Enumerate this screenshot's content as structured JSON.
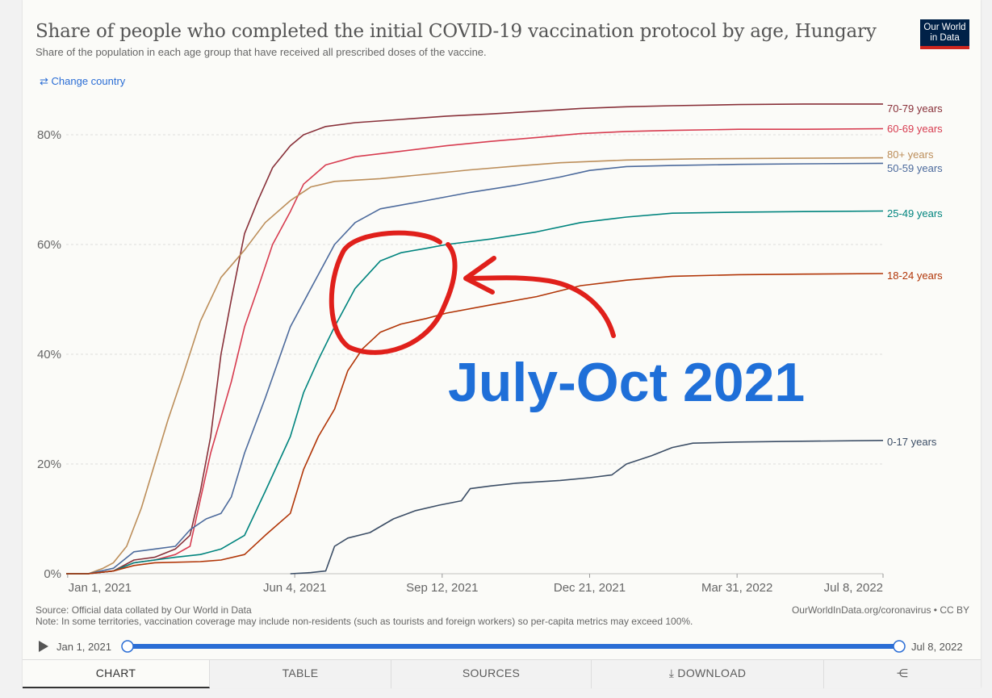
{
  "header": {
    "title": "Share of people who completed the initial COVID-19 vaccination protocol by age, Hungary",
    "subtitle": "Share of the population in each age group that have received all prescribed doses of the vaccine.",
    "logo_line1": "Our World",
    "logo_line2": "in Data",
    "change_country": "Change country"
  },
  "footer": {
    "source": "Source: Official data collated by Our World in Data",
    "note": "Note: In some territories, vaccination coverage may include non-residents (such as tourists and foreign workers) so per-capita metrics may exceed 100%.",
    "credit": "OurWorldInData.org/coronavirus • CC BY"
  },
  "timeline": {
    "start": "Jan 1, 2021",
    "end": "Jul 8, 2022"
  },
  "tabs": [
    "CHART",
    "TABLE",
    "SOURCES",
    "DOWNLOAD"
  ],
  "annotation": {
    "text": "July-Oct 2021",
    "color": "#1f6fd8",
    "circle_color": "#e0201b"
  },
  "chart_data": {
    "type": "line",
    "x_tick_labels": [
      "Jan 1, 2021",
      "Jun 4, 2021",
      "Sep 12, 2021",
      "Dec 21, 2021",
      "Mar 31, 2022",
      "Jul 8, 2022"
    ],
    "x_ticks": [
      "2021-01-01",
      "2021-06-04",
      "2021-09-12",
      "2021-12-21",
      "2022-03-31",
      "2022-07-08"
    ],
    "xlim": [
      "2020-12-31",
      "2022-07-08"
    ],
    "ylim": [
      0,
      80
    ],
    "y_ticks": [
      0,
      20,
      40,
      60,
      80
    ],
    "y_tick_labels": [
      "0%",
      "20%",
      "40%",
      "60%",
      "80%"
    ],
    "grid": "horizontal dashed",
    "labels_position": "right",
    "series": [
      {
        "name": "70-79 years",
        "color": "#883039",
        "points": [
          [
            "2020-12-31",
            0
          ],
          [
            "2021-01-15",
            0
          ],
          [
            "2021-02-01",
            0.5
          ],
          [
            "2021-02-15",
            2.5
          ],
          [
            "2021-03-01",
            3
          ],
          [
            "2021-03-15",
            4.5
          ],
          [
            "2021-03-25",
            7
          ],
          [
            "2021-04-01",
            15
          ],
          [
            "2021-04-08",
            25
          ],
          [
            "2021-04-15",
            40
          ],
          [
            "2021-04-22",
            50
          ],
          [
            "2021-05-01",
            62
          ],
          [
            "2021-05-10",
            68
          ],
          [
            "2021-05-20",
            74
          ],
          [
            "2021-06-01",
            78
          ],
          [
            "2021-06-10",
            80
          ],
          [
            "2021-06-25",
            81.5
          ],
          [
            "2021-07-15",
            82.2
          ],
          [
            "2021-08-15",
            82.8
          ],
          [
            "2021-09-15",
            83.4
          ],
          [
            "2021-10-15",
            83.8
          ],
          [
            "2021-11-15",
            84.3
          ],
          [
            "2021-12-15",
            84.8
          ],
          [
            "2022-01-15",
            85.1
          ],
          [
            "2022-02-15",
            85.3
          ],
          [
            "2022-04-01",
            85.5
          ],
          [
            "2022-05-15",
            85.6
          ],
          [
            "2022-07-08",
            85.6
          ]
        ]
      },
      {
        "name": "60-69 years",
        "color": "#d73c50",
        "points": [
          [
            "2020-12-31",
            0
          ],
          [
            "2021-01-15",
            0
          ],
          [
            "2021-02-01",
            0.5
          ],
          [
            "2021-02-15",
            2
          ],
          [
            "2021-03-01",
            2.5
          ],
          [
            "2021-03-15",
            3.5
          ],
          [
            "2021-03-25",
            5
          ],
          [
            "2021-04-08",
            22
          ],
          [
            "2021-04-22",
            35
          ],
          [
            "2021-05-01",
            45
          ],
          [
            "2021-05-10",
            52
          ],
          [
            "2021-05-20",
            60
          ],
          [
            "2021-06-01",
            66
          ],
          [
            "2021-06-10",
            71
          ],
          [
            "2021-06-25",
            74.5
          ],
          [
            "2021-07-15",
            76
          ],
          [
            "2021-08-15",
            77
          ],
          [
            "2021-09-15",
            78
          ],
          [
            "2021-10-15",
            78.8
          ],
          [
            "2021-11-15",
            79.5
          ],
          [
            "2021-12-15",
            80.2
          ],
          [
            "2022-01-15",
            80.6
          ],
          [
            "2022-02-15",
            80.8
          ],
          [
            "2022-04-01",
            81
          ],
          [
            "2022-05-15",
            81
          ],
          [
            "2022-07-08",
            81.1
          ]
        ]
      },
      {
        "name": "80+ years",
        "color": "#bc8e5a",
        "points": [
          [
            "2020-12-31",
            0
          ],
          [
            "2021-01-15",
            0
          ],
          [
            "2021-01-25",
            1
          ],
          [
            "2021-02-01",
            2
          ],
          [
            "2021-02-10",
            5
          ],
          [
            "2021-02-20",
            12
          ],
          [
            "2021-03-01",
            20
          ],
          [
            "2021-03-10",
            28
          ],
          [
            "2021-03-20",
            36
          ],
          [
            "2021-04-01",
            46
          ],
          [
            "2021-04-15",
            54
          ],
          [
            "2021-05-01",
            59
          ],
          [
            "2021-05-15",
            64
          ],
          [
            "2021-06-01",
            68
          ],
          [
            "2021-06-15",
            70.5
          ],
          [
            "2021-07-01",
            71.5
          ],
          [
            "2021-08-01",
            72
          ],
          [
            "2021-09-01",
            72.8
          ],
          [
            "2021-10-01",
            73.6
          ],
          [
            "2021-11-01",
            74.3
          ],
          [
            "2021-12-01",
            74.9
          ],
          [
            "2022-01-15",
            75.4
          ],
          [
            "2022-03-01",
            75.6
          ],
          [
            "2022-05-01",
            75.7
          ],
          [
            "2022-07-08",
            75.8
          ]
        ]
      },
      {
        "name": "50-59 years",
        "color": "#4c6a9c",
        "points": [
          [
            "2020-12-31",
            0
          ],
          [
            "2021-01-15",
            0
          ],
          [
            "2021-02-01",
            1
          ],
          [
            "2021-02-15",
            4
          ],
          [
            "2021-03-01",
            4.5
          ],
          [
            "2021-03-15",
            5
          ],
          [
            "2021-03-25",
            8
          ],
          [
            "2021-04-05",
            10
          ],
          [
            "2021-04-15",
            11
          ],
          [
            "2021-04-22",
            14
          ],
          [
            "2021-05-01",
            22
          ],
          [
            "2021-05-15",
            32
          ],
          [
            "2021-06-01",
            45
          ],
          [
            "2021-06-15",
            52
          ],
          [
            "2021-07-01",
            60
          ],
          [
            "2021-07-15",
            64
          ],
          [
            "2021-08-01",
            66.5
          ],
          [
            "2021-09-01",
            68
          ],
          [
            "2021-10-01",
            69.5
          ],
          [
            "2021-11-01",
            70.8
          ],
          [
            "2021-12-01",
            72.3
          ],
          [
            "2021-12-21",
            73.5
          ],
          [
            "2022-01-15",
            74.2
          ],
          [
            "2022-02-15",
            74.4
          ],
          [
            "2022-04-01",
            74.6
          ],
          [
            "2022-05-15",
            74.7
          ],
          [
            "2022-07-08",
            74.8
          ]
        ]
      },
      {
        "name": "25-49 years",
        "color": "#00847e",
        "points": [
          [
            "2020-12-31",
            0
          ],
          [
            "2021-01-15",
            0
          ],
          [
            "2021-02-01",
            0.5
          ],
          [
            "2021-02-15",
            2
          ],
          [
            "2021-03-01",
            2.5
          ],
          [
            "2021-03-15",
            3
          ],
          [
            "2021-04-01",
            3.5
          ],
          [
            "2021-04-15",
            4.5
          ],
          [
            "2021-05-01",
            7
          ],
          [
            "2021-05-15",
            15
          ],
          [
            "2021-06-01",
            25
          ],
          [
            "2021-06-10",
            33
          ],
          [
            "2021-06-20",
            39
          ],
          [
            "2021-07-01",
            45
          ],
          [
            "2021-07-15",
            52
          ],
          [
            "2021-08-01",
            57
          ],
          [
            "2021-08-15",
            58.5
          ],
          [
            "2021-09-01",
            59.3
          ],
          [
            "2021-09-15",
            60
          ],
          [
            "2021-10-15",
            61
          ],
          [
            "2021-11-15",
            62.3
          ],
          [
            "2021-12-15",
            64
          ],
          [
            "2022-01-15",
            65
          ],
          [
            "2022-02-15",
            65.7
          ],
          [
            "2022-04-01",
            65.9
          ],
          [
            "2022-05-15",
            66
          ],
          [
            "2022-07-08",
            66.1
          ]
        ]
      },
      {
        "name": "18-24 years",
        "color": "#b13507",
        "points": [
          [
            "2020-12-31",
            0
          ],
          [
            "2021-01-15",
            0
          ],
          [
            "2021-02-01",
            0.5
          ],
          [
            "2021-02-15",
            1.5
          ],
          [
            "2021-03-01",
            2
          ],
          [
            "2021-04-01",
            2.2
          ],
          [
            "2021-04-15",
            2.5
          ],
          [
            "2021-05-01",
            3.5
          ],
          [
            "2021-05-15",
            7
          ],
          [
            "2021-06-01",
            11
          ],
          [
            "2021-06-10",
            19
          ],
          [
            "2021-06-20",
            25
          ],
          [
            "2021-07-01",
            30
          ],
          [
            "2021-07-10",
            37
          ],
          [
            "2021-07-20",
            41
          ],
          [
            "2021-08-01",
            44
          ],
          [
            "2021-08-15",
            45.5
          ],
          [
            "2021-09-01",
            46.5
          ],
          [
            "2021-09-15",
            47.5
          ],
          [
            "2021-10-15",
            49
          ],
          [
            "2021-11-15",
            50.5
          ],
          [
            "2021-12-15",
            52.5
          ],
          [
            "2022-01-15",
            53.5
          ],
          [
            "2022-02-15",
            54.2
          ],
          [
            "2022-04-01",
            54.5
          ],
          [
            "2022-05-15",
            54.6
          ],
          [
            "2022-07-08",
            54.7
          ]
        ]
      },
      {
        "name": "0-17 years",
        "color": "#3c4e66",
        "points": [
          [
            "2021-06-01",
            0
          ],
          [
            "2021-06-15",
            0.2
          ],
          [
            "2021-06-25",
            0.5
          ],
          [
            "2021-07-01",
            5
          ],
          [
            "2021-07-10",
            6.5
          ],
          [
            "2021-07-25",
            7.5
          ],
          [
            "2021-08-10",
            10
          ],
          [
            "2021-08-25",
            11.5
          ],
          [
            "2021-09-10",
            12.5
          ],
          [
            "2021-09-25",
            13.3
          ],
          [
            "2021-10-01",
            15.5
          ],
          [
            "2021-10-15",
            16
          ],
          [
            "2021-11-01",
            16.5
          ],
          [
            "2021-12-01",
            17
          ],
          [
            "2021-12-21",
            17.5
          ],
          [
            "2022-01-05",
            18
          ],
          [
            "2022-01-15",
            20
          ],
          [
            "2022-02-01",
            21.5
          ],
          [
            "2022-02-15",
            23
          ],
          [
            "2022-03-01",
            23.8
          ],
          [
            "2022-03-31",
            24
          ],
          [
            "2022-05-01",
            24.1
          ],
          [
            "2022-07-08",
            24.3
          ]
        ]
      }
    ]
  }
}
